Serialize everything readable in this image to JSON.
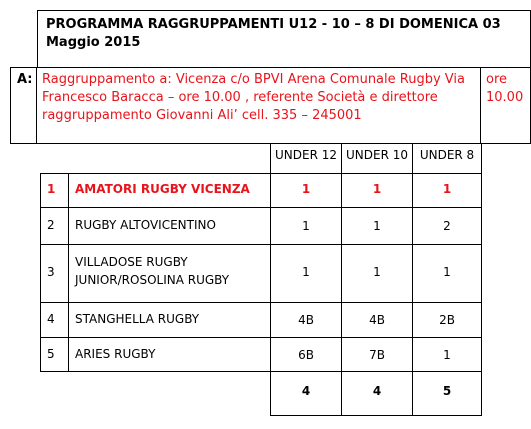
{
  "title": {
    "line1": "PROGRAMMA  RAGGRUPPAMENTI   U12 - 10 – 8  DI DOMENICA 03",
    "line2": "Maggio 2015"
  },
  "group": {
    "letter": "A:",
    "description_lines": [
      "Raggruppamento a: Vicenza c/o BPVI Arena Comunale Rugby Via",
      "Francesco Baracca – ore 10.00 , referente Società e direttore",
      "raggruppamento Giovanni Ali’ cell. 335 – 245001"
    ],
    "time_lines": [
      "ore",
      "10.00"
    ]
  },
  "table": {
    "headers": [
      "UNDER 12",
      "UNDER 10",
      "UNDER 8"
    ],
    "rows": [
      {
        "num": "1",
        "team_lines": [
          "AMATORI RUGBY VICENZA"
        ],
        "u12": "1",
        "u10": "1",
        "u8": "1"
      },
      {
        "num": "2",
        "team_lines": [
          "RUGBY ALTOVICENTINO"
        ],
        "u12": "1",
        "u10": "1",
        "u8": "2"
      },
      {
        "num": "3",
        "team_lines": [
          "VILLADOSE RUGBY",
          "JUNIOR/ROSOLINA RUGBY"
        ],
        "u12": "1",
        "u10": "1",
        "u8": "1"
      },
      {
        "num": "4",
        "team_lines": [
          "STANGHELLA RUGBY"
        ],
        "u12": "4B",
        "u10": "4B",
        "u8": "2B"
      },
      {
        "num": "5",
        "team_lines": [
          "ARIES RUGBY"
        ],
        "u12": "6B",
        "u10": "7B",
        "u8": "1"
      }
    ],
    "totals": {
      "u12": "4",
      "u10": "4",
      "u8": "5"
    }
  },
  "colors": {
    "highlight": "#e8141c",
    "border": "#000000",
    "text": "#000000"
  }
}
